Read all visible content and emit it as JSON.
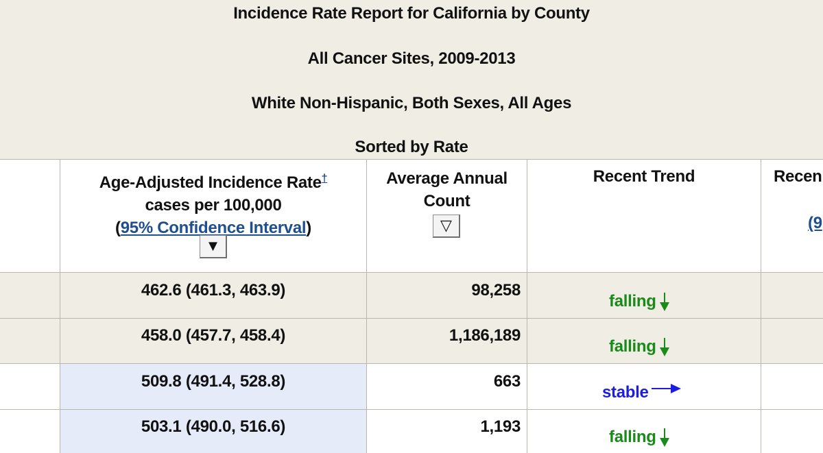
{
  "caption": {
    "title": "Incidence Rate Report for California by County",
    "sites": "All Cancer Sites, 2009-2013",
    "population": "White Non-Hispanic, Both Sexes, All Ages",
    "sort": "Sorted by Rate"
  },
  "headers": {
    "rate_line1": "Age-Adjusted Incidence Rate",
    "rate_dagger": "†",
    "rate_line2": "cases per 100,000",
    "rate_line3_open": "(",
    "rate_line3_link": "95% Confidence Interval",
    "rate_line3_close": ")",
    "rate_sort_symbol": "▼",
    "count_line1": "Average Annual",
    "count_line2": "Count",
    "count_sort_symbol": "▽",
    "trend": "Recent Trend",
    "next_col_partial": "Recen",
    "next_col_partial2": "(9"
  },
  "rows": [
    {
      "rate": "462.6 (461.3, 463.9)",
      "count": "98,258",
      "trend": "falling",
      "trend_dir": "down"
    },
    {
      "rate": "458.0 (457.7, 458.4)",
      "count": "1,186,189",
      "trend": "falling",
      "trend_dir": "down"
    },
    {
      "rate": "509.8 (491.4, 528.8)",
      "count": "663",
      "trend": "stable",
      "trend_dir": "right"
    },
    {
      "rate": "503.1 (490.0, 516.6)",
      "count": "1,193",
      "trend": "falling",
      "trend_dir": "down"
    }
  ],
  "colors": {
    "beige": "#efede4",
    "highlight_blue": "#e6ebf9",
    "falling_green": "#1a8a1a",
    "stable_blue": "#1d1de0",
    "link_blue": "#1f4f8f"
  }
}
